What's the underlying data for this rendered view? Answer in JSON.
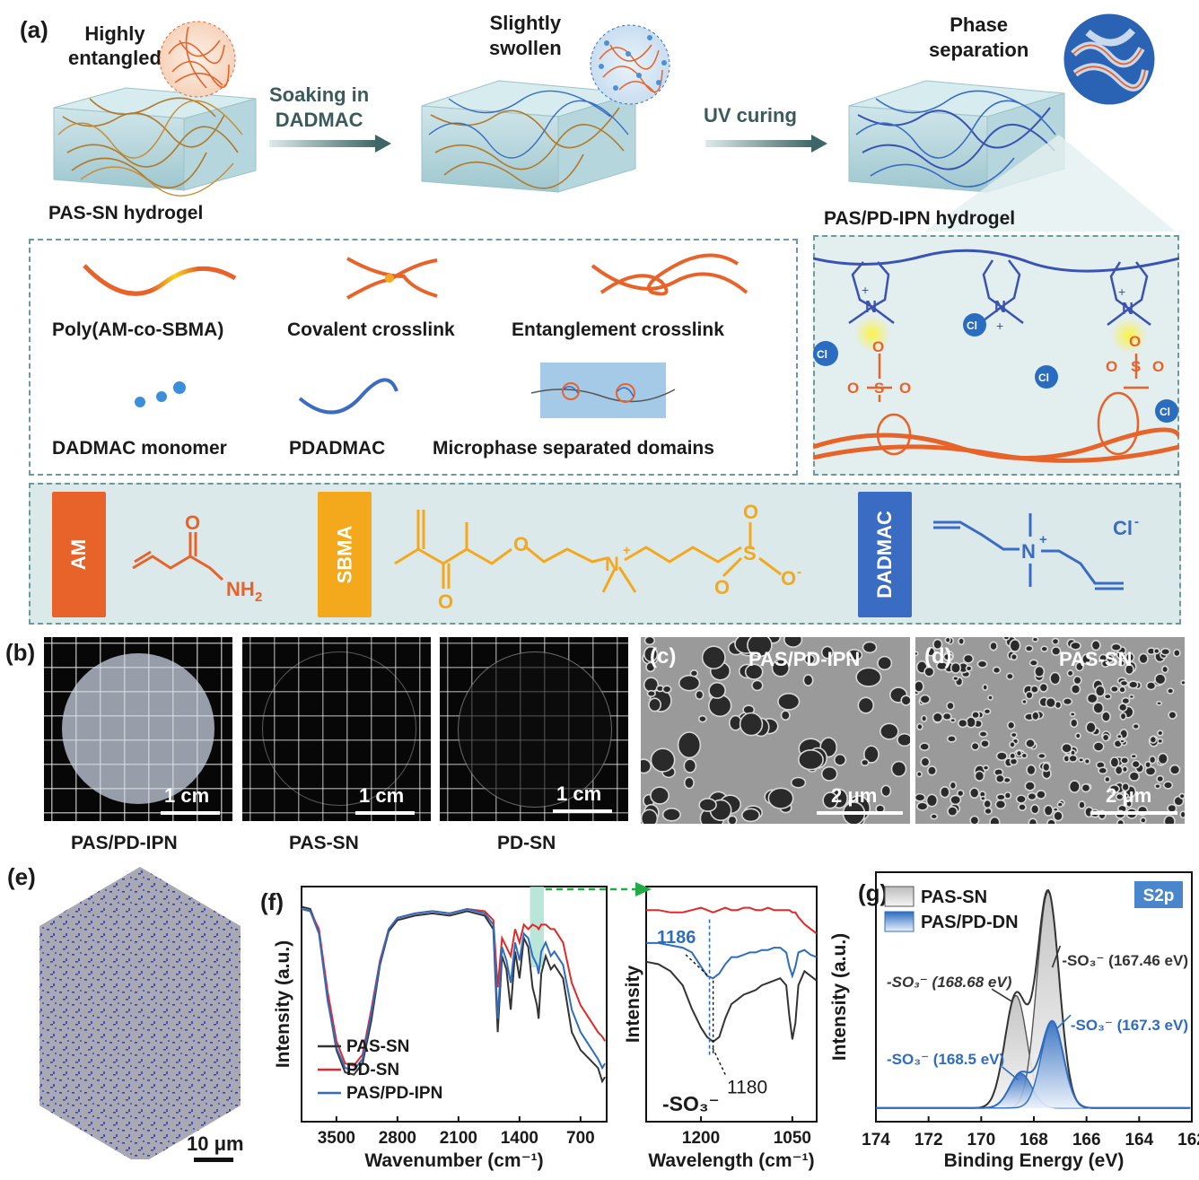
{
  "panel_a": {
    "label": "(a)",
    "stage1_title": [
      "Highly",
      "entangled"
    ],
    "stage1_caption": "PAS-SN hydrogel",
    "arrow1_text": [
      "Soaking in",
      "DADMAC"
    ],
    "stage2_title": [
      "Slightly",
      "swollen"
    ],
    "arrow2_text": "UV curing",
    "stage3_title": [
      "Phase",
      "separation"
    ],
    "stage3_caption": "PAS/PD-IPN hydrogel",
    "legend": [
      "Poly(AM-co-SBMA)",
      "Covalent crosslink",
      "Entanglement crosslink",
      "DADMAC monomer",
      "PDADMAC",
      "Microphase separated domains"
    ],
    "zoom_labels": {
      "n": "N",
      "plus": "+",
      "cl": "Cl",
      "minus": "-",
      "o": "O",
      "s": "S"
    },
    "monomers": {
      "am_tag": "AM",
      "sbma_tag": "SBMA",
      "dadmac_tag": "DADMAC",
      "am_o": "O",
      "am_nh2": "NH",
      "am_nh2_sub": "2",
      "sbma_o": "O",
      "sbma_n": "N",
      "sbma_plus": "+",
      "sbma_s": "S",
      "sbma_ominus": "O",
      "sbma_minus": "-",
      "dadmac_n": "N",
      "dadmac_plus": "+",
      "dadmac_cl": "Cl",
      "dadmac_cl_minus": "-"
    }
  },
  "panel_b": {
    "label": "(b)",
    "photos": [
      {
        "caption": "PAS/PD-IPN",
        "scale": "1 cm"
      },
      {
        "caption": "PAS-SN",
        "scale": "1 cm"
      },
      {
        "caption": "PD-SN",
        "scale": "1 cm"
      }
    ]
  },
  "panel_c": {
    "label": "(c)",
    "title": "PAS/PD-IPN",
    "scale": "2 μm"
  },
  "panel_d": {
    "label": "(d)",
    "title": "PAS-SN",
    "scale": "2 μm"
  },
  "panel_e": {
    "label": "(e)",
    "scale": "10 μm"
  },
  "panel_f": {
    "label": "(f)"
  },
  "panel_g": {
    "label": "(g)"
  },
  "colors": {
    "orange": "#e8632a",
    "yellow": "#f4a81c",
    "blue": "#3a6cc4",
    "teal_bg": "#dfecec",
    "pas_sn": "#333333",
    "pd_sn": "#e02a2a",
    "ipn": "#2e6cc0"
  },
  "chart_data": [
    {
      "type": "line",
      "panel": "(f) left",
      "xlabel": "Wavenumber (cm⁻¹)",
      "ylabel": "Intensity (a.u.)",
      "xlim": [
        3900,
        400
      ],
      "xticks": [
        3500,
        2800,
        2100,
        1400,
        700
      ],
      "series": [
        {
          "name": "PAS-SN",
          "color": "#333333",
          "x": [
            3900,
            3800,
            3700,
            3600,
            3500,
            3400,
            3300,
            3200,
            3100,
            3000,
            2900,
            2800,
            2600,
            2400,
            2200,
            2000,
            1800,
            1700,
            1650,
            1600,
            1550,
            1500,
            1450,
            1400,
            1350,
            1300,
            1250,
            1200,
            1180,
            1150,
            1100,
            1040,
            1000,
            900,
            800,
            700,
            600,
            500,
            450,
            420
          ],
          "y": [
            96,
            95,
            85,
            55,
            32,
            22,
            21,
            26,
            45,
            70,
            85,
            90,
            92,
            93,
            92,
            94,
            92,
            86,
            40,
            74,
            68,
            50,
            76,
            64,
            82,
            78,
            60,
            52,
            46,
            66,
            74,
            68,
            70,
            64,
            40,
            32,
            28,
            24,
            18,
            20
          ]
        },
        {
          "name": "PD-SN",
          "color": "#e02a2a",
          "x": [
            3900,
            3800,
            3700,
            3600,
            3500,
            3400,
            3300,
            3200,
            3100,
            3000,
            2900,
            2800,
            2600,
            2400,
            2200,
            2000,
            1800,
            1700,
            1650,
            1600,
            1550,
            1500,
            1450,
            1400,
            1350,
            1300,
            1250,
            1200,
            1180,
            1150,
            1100,
            1040,
            1000,
            900,
            800,
            700,
            600,
            500,
            450,
            420
          ],
          "y": [
            95,
            94,
            86,
            58,
            36,
            26,
            25,
            30,
            50,
            72,
            86,
            91,
            93,
            94,
            93,
            95,
            94,
            90,
            60,
            82,
            78,
            74,
            86,
            80,
            88,
            86,
            88,
            87,
            86,
            88,
            88,
            86,
            86,
            80,
            62,
            52,
            46,
            40,
            38,
            36
          ]
        },
        {
          "name": "PAS/PD-IPN",
          "color": "#2e6cc0",
          "x": [
            3900,
            3800,
            3700,
            3600,
            3500,
            3400,
            3300,
            3200,
            3100,
            3000,
            2900,
            2800,
            2600,
            2400,
            2200,
            2000,
            1800,
            1700,
            1650,
            1600,
            1550,
            1500,
            1450,
            1400,
            1350,
            1300,
            1250,
            1200,
            1180,
            1150,
            1100,
            1040,
            1000,
            900,
            800,
            700,
            600,
            500,
            450,
            420
          ],
          "y": [
            95,
            94,
            84,
            54,
            33,
            24,
            23,
            28,
            48,
            71,
            86,
            91,
            93,
            94,
            93,
            95,
            93,
            88,
            46,
            78,
            72,
            62,
            80,
            72,
            84,
            82,
            74,
            70,
            66,
            76,
            80,
            74,
            76,
            70,
            50,
            40,
            34,
            28,
            24,
            26
          ]
        }
      ],
      "annotations": [
        "PAS-SN",
        "PD-SN",
        "PAS/PD-IPN"
      ]
    },
    {
      "type": "line",
      "panel": "(f) right",
      "xlabel": "Wavelength (cm⁻¹)",
      "ylabel": "Intensity",
      "xlim": [
        1290,
        1010
      ],
      "xticks": [
        1200,
        1050
      ],
      "series": [
        {
          "name": "PAS-SN",
          "color": "#333333",
          "x": [
            1290,
            1270,
            1250,
            1230,
            1215,
            1200,
            1190,
            1180,
            1170,
            1160,
            1150,
            1140,
            1130,
            1120,
            1110,
            1100,
            1090,
            1080,
            1070,
            1060,
            1055,
            1050,
            1045,
            1040,
            1030,
            1020,
            1010
          ],
          "y": [
            68,
            67,
            64,
            58,
            48,
            40,
            36,
            34,
            36,
            44,
            50,
            52,
            54,
            55,
            56,
            58,
            59,
            60,
            61,
            58,
            45,
            35,
            42,
            58,
            64,
            62,
            60
          ]
        },
        {
          "name": "PD-SN",
          "color": "#e02a2a",
          "x": [
            1290,
            1270,
            1250,
            1230,
            1215,
            1200,
            1190,
            1180,
            1170,
            1160,
            1150,
            1140,
            1130,
            1120,
            1110,
            1100,
            1090,
            1080,
            1070,
            1060,
            1055,
            1050,
            1045,
            1040,
            1030,
            1020,
            1010
          ],
          "y": [
            90,
            90,
            89,
            89,
            90,
            91,
            90,
            89,
            90,
            91,
            90,
            90,
            91,
            91,
            90,
            90,
            91,
            90,
            90,
            90,
            90,
            89,
            89,
            87,
            84,
            82,
            80
          ]
        },
        {
          "name": "PAS/PD-IPN",
          "color": "#2e6cc0",
          "x": [
            1290,
            1270,
            1250,
            1230,
            1215,
            1200,
            1190,
            1180,
            1170,
            1160,
            1150,
            1140,
            1130,
            1120,
            1110,
            1100,
            1090,
            1080,
            1070,
            1060,
            1055,
            1050,
            1045,
            1040,
            1030,
            1020,
            1010
          ],
          "y": [
            76,
            76,
            75,
            74,
            72,
            66,
            62,
            61,
            63,
            67,
            70,
            70,
            71,
            72,
            72,
            73,
            73,
            74,
            74,
            72,
            66,
            62,
            66,
            72,
            73,
            71,
            70
          ]
        }
      ],
      "annotations": [
        "1186",
        "1180",
        "-SO₃⁻"
      ]
    },
    {
      "type": "area",
      "panel": "(g)",
      "xlabel": "Binding Energy (eV)",
      "ylabel": "Intensity (a.u.)",
      "xlim": [
        174,
        162
      ],
      "xticks": [
        174,
        172,
        170,
        168,
        166,
        164,
        162
      ],
      "tag": "S2p",
      "legend": [
        "PAS-SN",
        "PAS/PD-DN"
      ],
      "peaks": [
        {
          "series": "PAS-SN",
          "center": 168.68,
          "height": 52,
          "label": "-SO₃⁻ (168.68 eV)"
        },
        {
          "series": "PAS-SN",
          "center": 167.46,
          "height": 100,
          "label": "-SO₃⁻ (167.46 eV)"
        },
        {
          "series": "PAS/PD-DN",
          "center": 168.5,
          "height": 16,
          "label": "-SO₃⁻ (168.5 eV)"
        },
        {
          "series": "PAS/PD-DN",
          "center": 167.3,
          "height": 40,
          "label": "-SO₃⁻ (167.3 eV)"
        }
      ]
    }
  ]
}
